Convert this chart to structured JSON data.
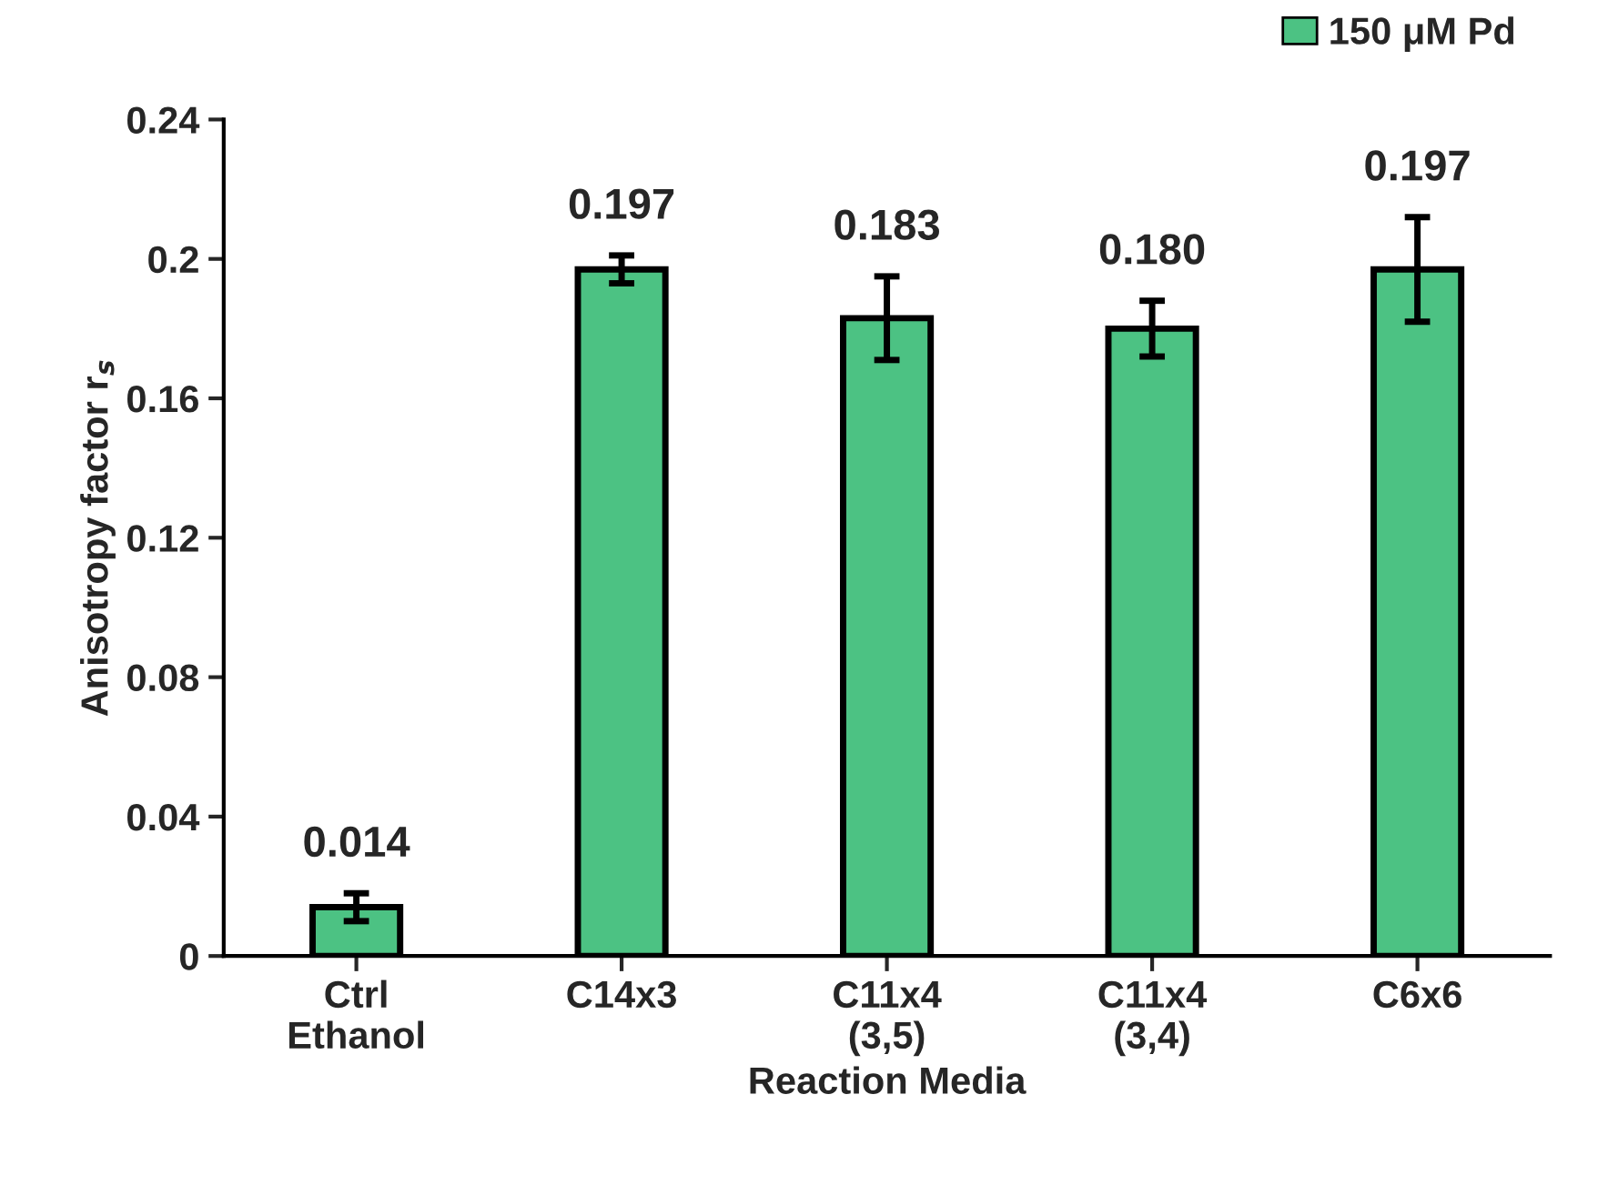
{
  "chart_data": {
    "type": "bar",
    "xlabel": "Reaction Media",
    "ylabel": "Anisotropy factor r$_{s}$",
    "categories": [
      "Ctrl\nEthanol",
      "C14x3",
      "C11x4\n(3,5)",
      "C11x4\n(3,4)",
      "C6x6"
    ],
    "series": [
      {
        "name": "150 μM Pd",
        "color": "#4cc283",
        "values": [
          0.014,
          0.197,
          0.183,
          0.18,
          0.197
        ],
        "errors": [
          0.004,
          0.004,
          0.012,
          0.008,
          0.015
        ],
        "value_labels": [
          "0.014",
          "0.197",
          "0.183",
          "0.180",
          "0.197"
        ]
      }
    ],
    "ylim": [
      0,
      0.24
    ],
    "yticks": [
      {
        "value": 0,
        "label": "0"
      },
      0.04,
      0.08,
      0.12,
      0.16,
      {
        "value": 0.2,
        "label": "0.2"
      },
      0.24
    ],
    "legend": "top right",
    "grid": false
  }
}
